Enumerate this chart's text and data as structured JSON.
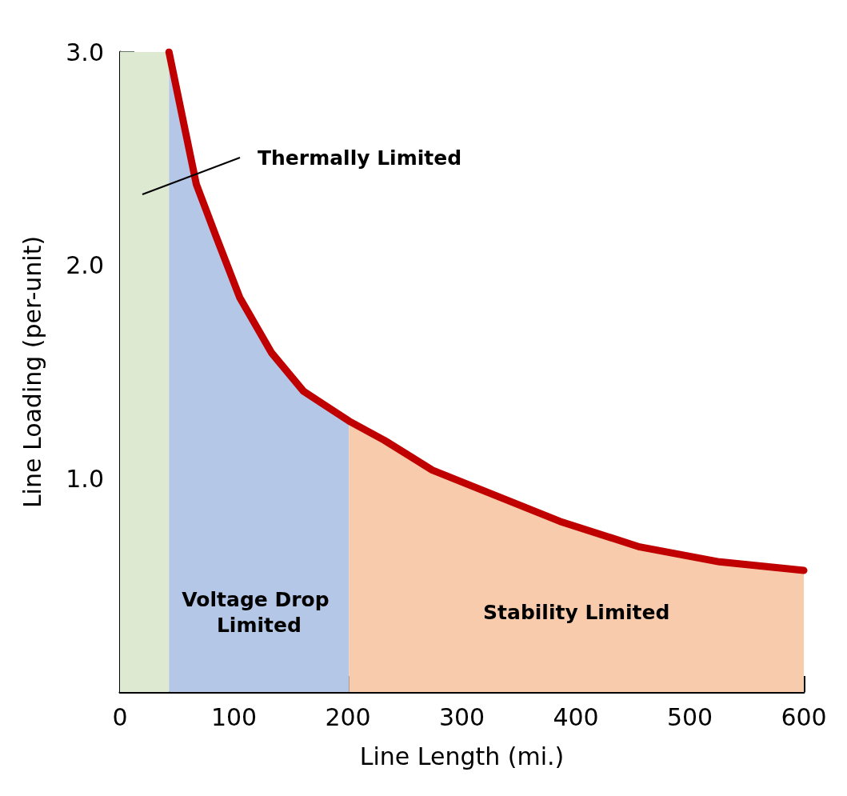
{
  "chart_data": {
    "type": "line",
    "xlabel": "Line Length (mi.)",
    "ylabel": "Line Loading (per-unit)",
    "xlim": [
      0,
      600
    ],
    "xticks": [
      0,
      100,
      200,
      300,
      400,
      500,
      600
    ],
    "ylim": [
      0,
      3
    ],
    "yticks": [
      {
        "value": 1,
        "label": "1.0"
      },
      {
        "value": 2,
        "label": "2.0"
      },
      {
        "value": 3,
        "label": "3.0"
      }
    ],
    "grid": false,
    "legend": false,
    "marker": "none",
    "line_style": "solid",
    "series": [
      {
        "type": "area",
        "name": "Voltage Drop Limited",
        "color": "#b4c7e7",
        "x": [
          43,
          67,
          84,
          105,
          133,
          161,
          201
        ],
        "values": [
          3.0,
          2.38,
          2.14,
          1.85,
          1.59,
          1.41,
          1.27
        ]
      },
      {
        "type": "area",
        "name": "Stability Limited",
        "color": "#f8cbad",
        "x": [
          201,
          232,
          274,
          316,
          386,
          456,
          526,
          600
        ],
        "values": [
          1.27,
          1.18,
          1.04,
          0.95,
          0.8,
          0.68,
          0.61,
          0.57
        ]
      },
      {
        "color": "#c00000",
        "x": [
          43,
          67,
          84,
          105,
          133,
          161,
          201,
          232,
          274,
          316,
          386,
          456,
          526,
          600
        ],
        "values": [
          3.0,
          2.38,
          2.14,
          1.85,
          1.59,
          1.41,
          1.27,
          1.18,
          1.04,
          0.95,
          0.8,
          0.68,
          0.61,
          0.57
        ]
      }
    ],
    "bands": [
      {
        "axis": "x",
        "from": 0,
        "to": 43,
        "label": "Thermally Limited",
        "color": "#dde9d1"
      }
    ]
  }
}
